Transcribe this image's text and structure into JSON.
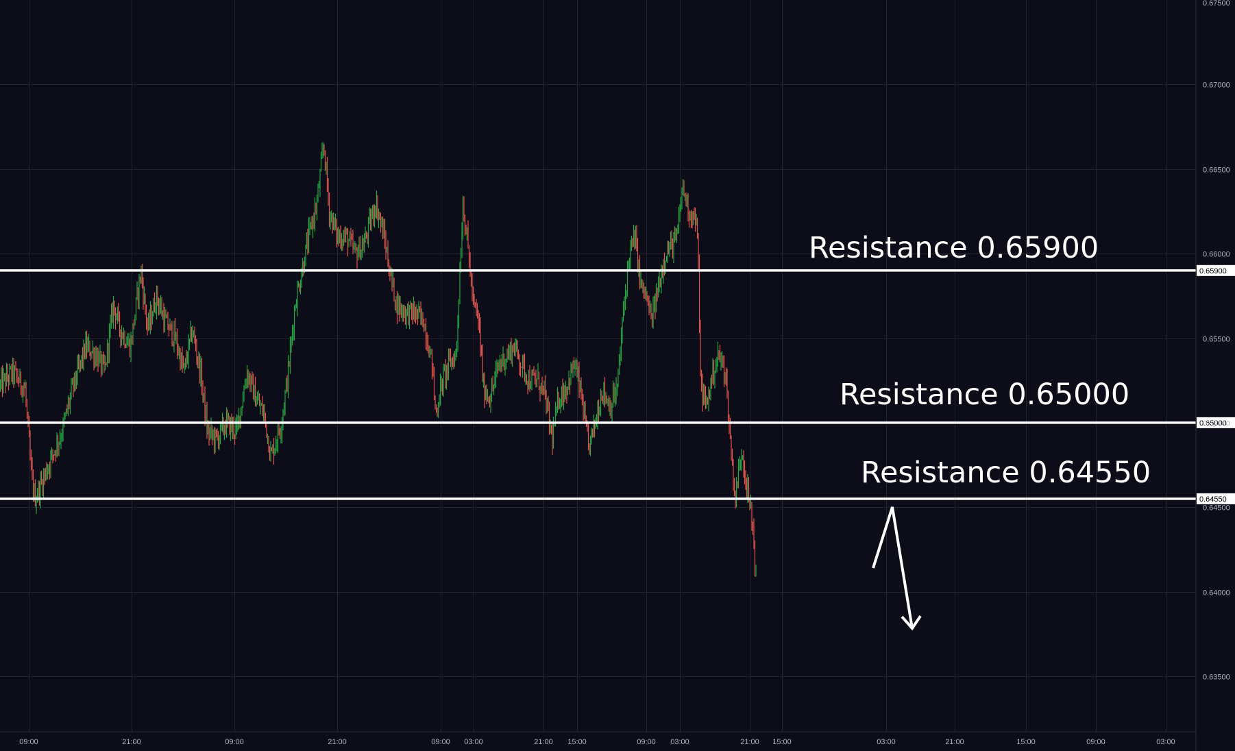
{
  "chart_data": {
    "type": "candlestick",
    "colors": {
      "background": "#0c0d18",
      "grid": "#23252f",
      "axis_text": "#b2b5be",
      "up": "#26a744",
      "down": "#e2564d",
      "level_line": "#ffffff",
      "annotation": "#ffffff"
    },
    "grid": true,
    "y_axis": {
      "ylim": [
        0.6313,
        0.6752
      ],
      "ticks": [
        "0.67500",
        "0.67000",
        "0.66500",
        "0.66000",
        "0.65500",
        "0.65000",
        "0.64500",
        "0.64000",
        "0.63500"
      ]
    },
    "x_axis": {
      "ticks": [
        "09:00",
        "21:00",
        "09:00",
        "21:00",
        "09:00",
        "03:00",
        "21:00",
        "15:00",
        "09:00",
        "03:00",
        "21:00",
        "15:00",
        "03:00",
        "21:00",
        "15:00",
        "09:00",
        "03:00"
      ]
    },
    "price_path": [
      [
        0,
        0.6522
      ],
      [
        18,
        0.653
      ],
      [
        36,
        0.652
      ],
      [
        45,
        0.647
      ],
      [
        50,
        0.6455
      ],
      [
        58,
        0.6462
      ],
      [
        75,
        0.648
      ],
      [
        90,
        0.6495
      ],
      [
        105,
        0.652
      ],
      [
        125,
        0.6545
      ],
      [
        140,
        0.654
      ],
      [
        152,
        0.653
      ],
      [
        165,
        0.657
      ],
      [
        175,
        0.6555
      ],
      [
        190,
        0.6545
      ],
      [
        205,
        0.659
      ],
      [
        215,
        0.6555
      ],
      [
        228,
        0.6575
      ],
      [
        240,
        0.656
      ],
      [
        255,
        0.655
      ],
      [
        268,
        0.653
      ],
      [
        280,
        0.6555
      ],
      [
        292,
        0.653
      ],
      [
        302,
        0.6495
      ],
      [
        315,
        0.649
      ],
      [
        330,
        0.65
      ],
      [
        345,
        0.6495
      ],
      [
        360,
        0.653
      ],
      [
        372,
        0.6515
      ],
      [
        385,
        0.6505
      ],
      [
        395,
        0.648
      ],
      [
        410,
        0.65
      ],
      [
        420,
        0.653
      ],
      [
        430,
        0.657
      ],
      [
        440,
        0.659
      ],
      [
        450,
        0.661
      ],
      [
        462,
        0.663
      ],
      [
        472,
        0.6665
      ],
      [
        480,
        0.6625
      ],
      [
        492,
        0.661
      ],
      [
        505,
        0.661
      ],
      [
        518,
        0.66
      ],
      [
        530,
        0.6605
      ],
      [
        548,
        0.663
      ],
      [
        560,
        0.661
      ],
      [
        568,
        0.659
      ],
      [
        578,
        0.657
      ],
      [
        592,
        0.6565
      ],
      [
        605,
        0.6565
      ],
      [
        618,
        0.656
      ],
      [
        630,
        0.6535
      ],
      [
        635,
        0.6505
      ],
      [
        645,
        0.6525
      ],
      [
        655,
        0.6535
      ],
      [
        665,
        0.654
      ],
      [
        675,
        0.663
      ],
      [
        682,
        0.6605
      ],
      [
        690,
        0.657
      ],
      [
        698,
        0.656
      ],
      [
        705,
        0.652
      ],
      [
        715,
        0.6515
      ],
      [
        728,
        0.6535
      ],
      [
        740,
        0.654
      ],
      [
        750,
        0.6545
      ],
      [
        760,
        0.6535
      ],
      [
        772,
        0.6525
      ],
      [
        785,
        0.6525
      ],
      [
        795,
        0.6515
      ],
      [
        805,
        0.649
      ],
      [
        815,
        0.6515
      ],
      [
        825,
        0.652
      ],
      [
        838,
        0.6535
      ],
      [
        848,
        0.6515
      ],
      [
        858,
        0.6485
      ],
      [
        868,
        0.65
      ],
      [
        878,
        0.652
      ],
      [
        890,
        0.651
      ],
      [
        900,
        0.652
      ],
      [
        910,
        0.657
      ],
      [
        918,
        0.66
      ],
      [
        926,
        0.661
      ],
      [
        935,
        0.658
      ],
      [
        942,
        0.6575
      ],
      [
        950,
        0.656
      ],
      [
        960,
        0.658
      ],
      [
        970,
        0.66
      ],
      [
        980,
        0.6605
      ],
      [
        988,
        0.661
      ],
      [
        995,
        0.664
      ],
      [
        1005,
        0.6625
      ],
      [
        1015,
        0.662
      ],
      [
        1018,
        0.66
      ],
      [
        1022,
        0.652
      ],
      [
        1030,
        0.651
      ],
      [
        1040,
        0.653
      ],
      [
        1048,
        0.654
      ],
      [
        1058,
        0.653
      ],
      [
        1065,
        0.649
      ],
      [
        1072,
        0.6455
      ],
      [
        1082,
        0.6485
      ],
      [
        1090,
        0.646
      ],
      [
        1097,
        0.6442
      ],
      [
        1103,
        0.6408
      ]
    ],
    "levels": [
      {
        "value": 0.659,
        "label": "0.65900",
        "annotation": "Resistance 0.65900"
      },
      {
        "value": 0.65,
        "label": "0.65000",
        "annotation": "Resistance 0.65000"
      },
      {
        "value": 0.6455,
        "label": "0.64550",
        "annotation": "Resistance 0.64550"
      }
    ]
  }
}
